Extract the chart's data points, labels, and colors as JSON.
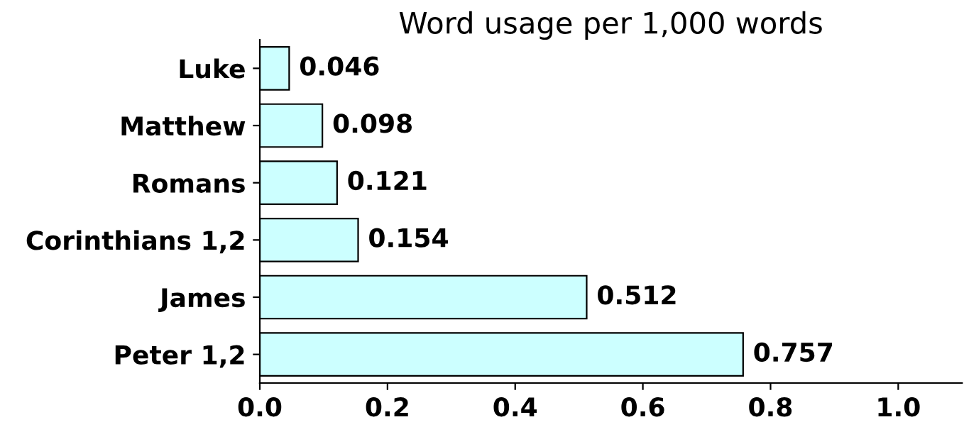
{
  "chart_data": {
    "type": "bar",
    "orientation": "horizontal",
    "title": "Word usage per 1,000 words",
    "categories": [
      "Luke",
      "Matthew",
      "Romans",
      "Corinthians 1,2",
      "James",
      "Peter 1,2"
    ],
    "values": [
      0.046,
      0.098,
      0.121,
      0.154,
      0.512,
      0.757
    ],
    "color": "#ccffff",
    "data_labels": true,
    "grid": false,
    "xlim": [
      0,
      1.1
    ],
    "xticks": [
      {
        "value": 0,
        "label": "0.0"
      },
      {
        "value": 0.2,
        "label": "0.2"
      },
      {
        "value": 0.4,
        "label": "0.4"
      },
      {
        "value": 0.6,
        "label": "0.6"
      },
      {
        "value": 0.8,
        "label": "0.8"
      },
      {
        "value": 1.0,
        "label": "1.0"
      }
    ]
  }
}
